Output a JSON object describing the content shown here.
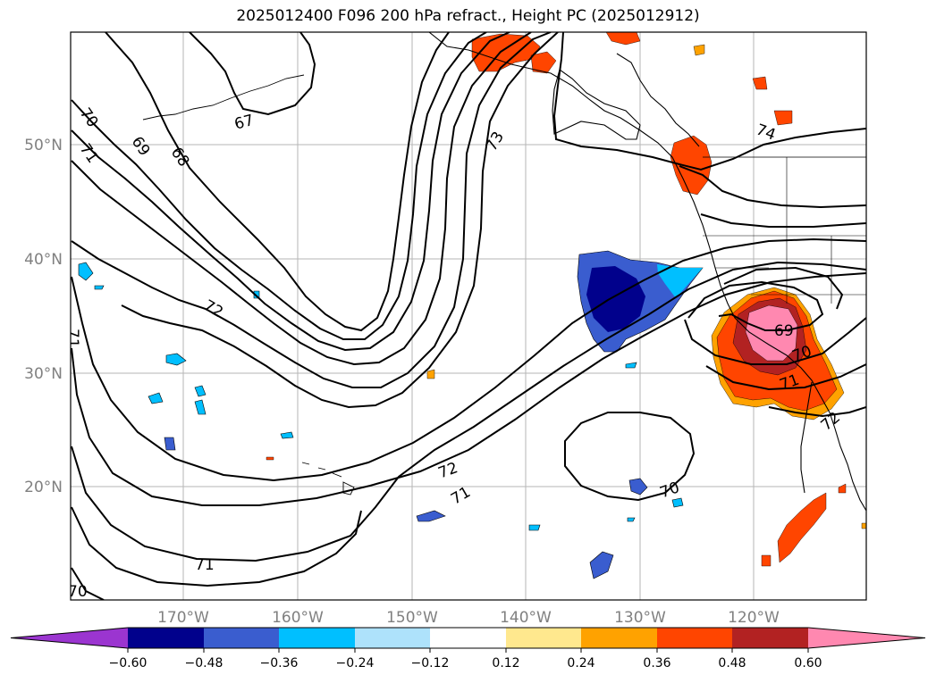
{
  "title": "2025012400 F096 200 hPa refract., Height PC (2025012912)",
  "lat_labels": [
    "50°N",
    "40°N",
    "30°N",
    "20°N"
  ],
  "lon_labels": [
    "170°W",
    "160°W",
    "150°W",
    "140°W",
    "130°W",
    "120°W"
  ],
  "colorbar": {
    "ticks": [
      "−0.60",
      "−0.48",
      "−0.36",
      "−0.24",
      "−0.12",
      "0.12",
      "0.24",
      "0.36",
      "0.48",
      "0.60"
    ],
    "colors": [
      "#9b35d0",
      "#01018c",
      "#3a5dcf",
      "#00bfff",
      "#aee2fb",
      "#ffffff",
      "#ffe88e",
      "#ffa200",
      "#ff4500",
      "#b22222",
      "#ff88b0"
    ]
  },
  "contour_labels": {
    "l70_nw": "70",
    "l71_nw": "71",
    "l69_nw": "69",
    "l68_nw": "68",
    "l67": "67",
    "l73": "73",
    "l74": "74",
    "l72_mid": "72",
    "l71_west": "71",
    "l72_south": "72",
    "l71_south": "71",
    "l70_low": "70",
    "l71_bottom": "71",
    "l70_bl": "70",
    "l69_ca": "69",
    "l70_ca": "70",
    "l71_ca": "71",
    "l72_baja": "72"
  }
}
